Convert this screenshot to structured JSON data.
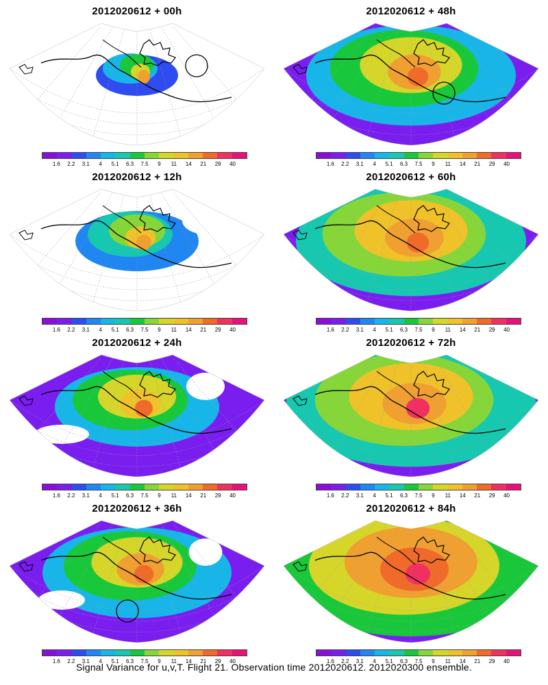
{
  "panels": [
    {
      "title": "2012020612 + 00h",
      "col": 0,
      "row": 0,
      "level": 0.0,
      "circles": [
        [
          287,
          96
        ]
      ]
    },
    {
      "title": "2012020612 + 48h",
      "col": 1,
      "row": 0,
      "level": 0.62,
      "circles": [
        [
          648,
          136
        ]
      ]
    },
    {
      "title": "2012020612 + 12h",
      "col": 0,
      "row": 1,
      "level": 0.2,
      "circles": []
    },
    {
      "title": "2012020612 + 60h",
      "col": 1,
      "row": 1,
      "level": 0.72,
      "circles": []
    },
    {
      "title": "2012020612 + 24h",
      "col": 0,
      "row": 2,
      "level": 0.4,
      "circles": []
    },
    {
      "title": "2012020612 + 72h",
      "col": 1,
      "row": 2,
      "level": 0.82,
      "circles": []
    },
    {
      "title": "2012020612 + 36h",
      "col": 0,
      "row": 3,
      "level": 0.52,
      "circles": [
        [
          186,
          892
        ]
      ]
    },
    {
      "title": "2012020612 + 84h",
      "col": 1,
      "row": 3,
      "level": 0.9,
      "circles": []
    }
  ],
  "colorbar": {
    "ticks": [
      "1.6",
      "2.2",
      "3.1",
      "4",
      "5.1",
      "6.3",
      "7.5",
      "9",
      "11",
      "14",
      "21",
      "29",
      "40"
    ],
    "colors": [
      "#8a0fd6",
      "#7a1ef0",
      "#2e4cf0",
      "#1f86f2",
      "#18b6e8",
      "#17c8b0",
      "#19c83a",
      "#86d63a",
      "#d6d62a",
      "#efc22a",
      "#f0a030",
      "#f06a2a",
      "#ef3060",
      "#e8107a"
    ]
  },
  "footer": "Signal Variance for u,v,T. Flight 21. Observation time 2012020612. 2012020300 ensemble."
}
